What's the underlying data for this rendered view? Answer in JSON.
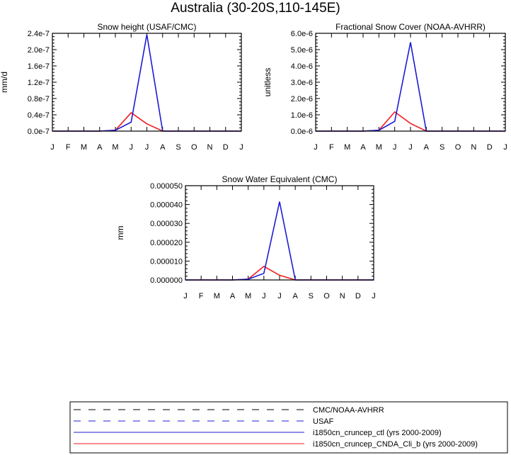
{
  "figure": {
    "title": "Australia (30-20S,110-145E)"
  },
  "colors": {
    "ctl": "#1c1cd6",
    "cnda": "#ee1c1c",
    "axis": "#000000",
    "obs": "#000000"
  },
  "chart_data": [
    {
      "type": "line",
      "title": "Snow height (USAF/CMC)",
      "xlabel": "",
      "ylabel": "mm/d",
      "categories": [
        "J",
        "F",
        "M",
        "A",
        "M",
        "J",
        "J",
        "A",
        "S",
        "O",
        "N",
        "D",
        "J"
      ],
      "ylim": [
        0,
        2.4e-07
      ],
      "yticks": [
        0,
        4e-08,
        8e-08,
        1.2e-07,
        1.6e-07,
        2e-07,
        2.4e-07
      ],
      "yticklabels": [
        "0.0e-7",
        "0.4e-7",
        "0.8e-7",
        "1.2e-7",
        "1.6e-7",
        "2.0e-7",
        "2.4e-7"
      ],
      "series": [
        {
          "name": "i1850cn_cruncep_ctl (yrs 2000-2009)",
          "color_key": "ctl",
          "values": [
            0,
            0,
            0,
            0,
            2e-09,
            2.2e-08,
            2.37e-07,
            0,
            0,
            0,
            0,
            0,
            0
          ]
        },
        {
          "name": "i1850cn_cruncep_CNDA_Cli_b (yrs 2000-2009)",
          "color_key": "cnda",
          "values": [
            0,
            0,
            0,
            0,
            2e-09,
            4.5e-08,
            1.8e-08,
            0,
            0,
            0,
            0,
            0,
            0
          ]
        }
      ]
    },
    {
      "type": "line",
      "title": "Fractional Snow Cover (NOAA-AVHRR)",
      "xlabel": "",
      "ylabel": "unitless",
      "categories": [
        "J",
        "F",
        "M",
        "A",
        "M",
        "J",
        "J",
        "A",
        "S",
        "O",
        "N",
        "D",
        "J"
      ],
      "ylim": [
        0,
        6e-06
      ],
      "yticks": [
        0,
        1e-06,
        2e-06,
        3e-06,
        4e-06,
        5e-06,
        6e-06
      ],
      "yticklabels": [
        "0.0e-6",
        "1.0e-6",
        "2.0e-6",
        "3.0e-6",
        "4.0e-6",
        "5.0e-6",
        "6.0e-6"
      ],
      "series": [
        {
          "name": "i1850cn_cruncep_ctl (yrs 2000-2009)",
          "color_key": "ctl",
          "values": [
            0,
            0,
            0,
            0,
            5e-08,
            6e-07,
            5.45e-06,
            0,
            0,
            0,
            0,
            0,
            0
          ]
        },
        {
          "name": "i1850cn_cruncep_CNDA_Cli_b (yrs 2000-2009)",
          "color_key": "cnda",
          "values": [
            0,
            0,
            0,
            0,
            5e-08,
            1.18e-06,
            4.7e-07,
            0,
            0,
            0,
            0,
            0,
            0
          ]
        }
      ]
    },
    {
      "type": "line",
      "title": "Snow Water Equivalent (CMC)",
      "xlabel": "",
      "ylabel": "mm",
      "categories": [
        "J",
        "F",
        "M",
        "A",
        "M",
        "J",
        "J",
        "A",
        "S",
        "O",
        "N",
        "D",
        "J"
      ],
      "ylim": [
        0,
        5e-05
      ],
      "yticks": [
        0,
        1e-05,
        2e-05,
        3e-05,
        4e-05,
        5e-05
      ],
      "yticklabels": [
        "0.000000",
        "0.000010",
        "0.000020",
        "0.000030",
        "0.000040",
        "0.000050"
      ],
      "series": [
        {
          "name": "i1850cn_cruncep_ctl (yrs 2000-2009)",
          "color_key": "ctl",
          "values": [
            0,
            0,
            0,
            0,
            4e-07,
            3.5e-06,
            4.15e-05,
            0,
            0,
            0,
            0,
            0,
            0
          ]
        },
        {
          "name": "i1850cn_cruncep_CNDA_Cli_b (yrs 2000-2009)",
          "color_key": "cnda",
          "values": [
            0,
            0,
            0,
            0,
            4e-07,
            7.2e-06,
            2.5e-06,
            0,
            0,
            0,
            0,
            0,
            0
          ]
        }
      ]
    }
  ],
  "legend": {
    "position": "bottom",
    "entries": [
      {
        "label": "CMC/NOAA-AVHRR",
        "style": "dashed-long",
        "color_key": "obs"
      },
      {
        "label": "USAF",
        "style": "dashed",
        "color_key": "ctl"
      },
      {
        "label": "i1850cn_cruncep_ctl (yrs 2000-2009)",
        "style": "solid",
        "color_key": "ctl"
      },
      {
        "label": "i1850cn_cruncep_CNDA_Cli_b (yrs 2000-2009)",
        "style": "solid",
        "color_key": "cnda"
      }
    ]
  }
}
